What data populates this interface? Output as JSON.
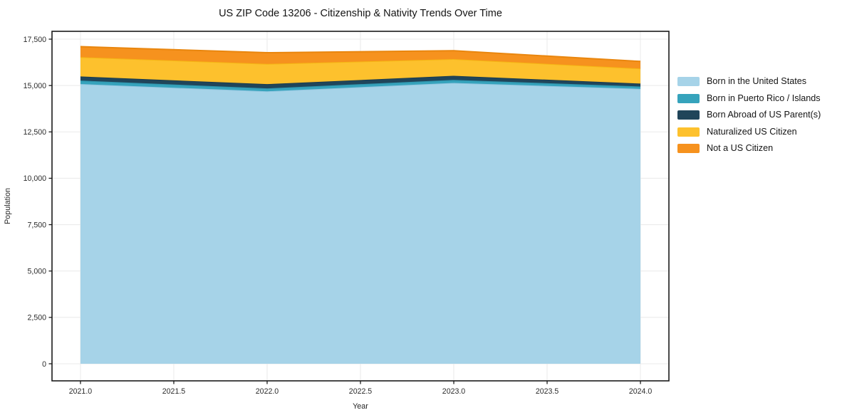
{
  "chart_data": {
    "type": "area",
    "stacked": true,
    "title": "US ZIP Code 13206 - Citizenship & Nativity Trends Over Time",
    "xlabel": "Year",
    "ylabel": "Population",
    "grid": true,
    "legend_position": "right-outside",
    "x": [
      2021,
      2022,
      2023,
      2024
    ],
    "xlim": [
      2020.8475,
      2024.1525
    ],
    "ylim": [
      -921,
      17922
    ],
    "x_ticks": [
      2021.0,
      2021.5,
      2022.0,
      2022.5,
      2023.0,
      2023.5,
      2024.0
    ],
    "x_tick_labels": [
      "2021.0",
      "2021.5",
      "2022.0",
      "2022.5",
      "2023.0",
      "2023.5",
      "2024.0"
    ],
    "y_ticks": [
      0,
      2500,
      5000,
      7500,
      10000,
      12500,
      15000,
      17500
    ],
    "y_tick_labels": [
      "0",
      "2,500",
      "5,000",
      "7,500",
      "10,000",
      "12,500",
      "15,000",
      "17,500"
    ],
    "series": [
      {
        "name": "Born in the United States",
        "color": "#a6d3e8",
        "line_color": "#92c6e0",
        "values": [
          15080,
          14690,
          15140,
          14820
        ]
      },
      {
        "name": "Born in Puerto Rico / Islands",
        "color": "#36a3bc",
        "line_color": "#2e93ab",
        "values": [
          190,
          155,
          165,
          130
        ]
      },
      {
        "name": "Born Abroad of US Parent(s)",
        "color": "#20455a",
        "line_color": "#1b3c4f",
        "values": [
          220,
          230,
          220,
          155
        ]
      },
      {
        "name": "Naturalized US Citizen",
        "color": "#fdc12d",
        "line_color": "#f5b614",
        "values": [
          1040,
          1090,
          900,
          810
        ]
      },
      {
        "name": "Not a US Citizen",
        "color": "#f6921e",
        "line_color": "#e9860e",
        "values": [
          565,
          605,
          450,
          385
        ]
      }
    ],
    "colors": {
      "gridline": "#ebebeb",
      "spine": "#1a1a1a",
      "plot_background": "#ffffff"
    }
  }
}
